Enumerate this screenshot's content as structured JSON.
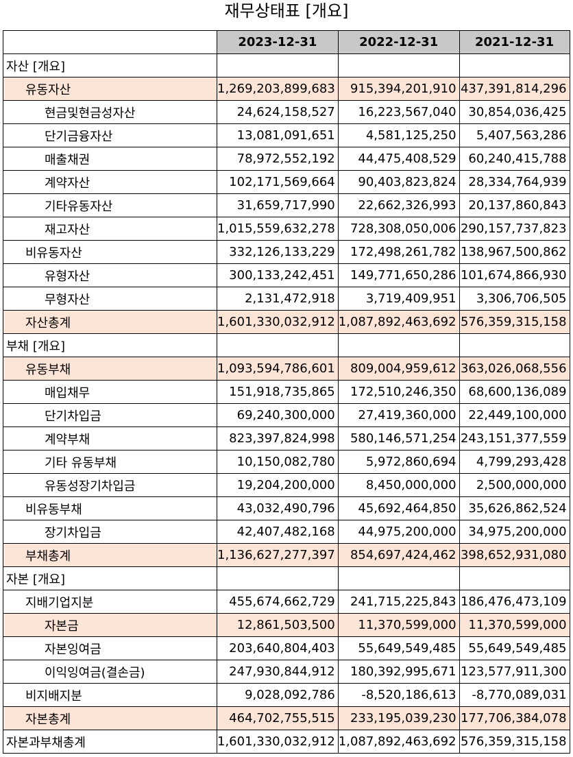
{
  "title": "재무상태표 [개요]",
  "columns": [
    "2023-12-31",
    "2022-12-31",
    "2021-12-31"
  ],
  "rows": [
    {
      "label": "자산 [개요]",
      "level": 0,
      "highlight": false,
      "values": [
        "",
        "",
        ""
      ]
    },
    {
      "label": "유동자산",
      "level": 1,
      "highlight": true,
      "values": [
        "1,269,203,899,683",
        "915,394,201,910",
        "437,391,814,296"
      ]
    },
    {
      "label": "현금및현금성자산",
      "level": 2,
      "highlight": false,
      "values": [
        "24,624,158,527",
        "16,223,567,040",
        "30,854,036,425"
      ]
    },
    {
      "label": "단기금융자산",
      "level": 2,
      "highlight": false,
      "values": [
        "13,081,091,651",
        "4,581,125,250",
        "5,407,563,286"
      ]
    },
    {
      "label": "매출채권",
      "level": 2,
      "highlight": false,
      "values": [
        "78,972,552,192",
        "44,475,408,529",
        "60,240,415,788"
      ]
    },
    {
      "label": "계약자산",
      "level": 2,
      "highlight": false,
      "values": [
        "102,171,569,664",
        "90,403,823,824",
        "28,334,764,939"
      ]
    },
    {
      "label": "기타유동자산",
      "level": 2,
      "highlight": false,
      "values": [
        "31,659,717,990",
        "22,662,326,993",
        "20,137,860,843"
      ]
    },
    {
      "label": "재고자산",
      "level": 2,
      "highlight": false,
      "values": [
        "1,015,559,632,278",
        "728,308,050,006",
        "290,157,737,823"
      ]
    },
    {
      "label": "비유동자산",
      "level": 1,
      "highlight": false,
      "values": [
        "332,126,133,229",
        "172,498,261,782",
        "138,967,500,862"
      ]
    },
    {
      "label": "유형자산",
      "level": 2,
      "highlight": false,
      "values": [
        "300,133,242,451",
        "149,771,650,286",
        "101,674,866,930"
      ]
    },
    {
      "label": "무형자산",
      "level": 2,
      "highlight": false,
      "values": [
        "2,131,472,918",
        "3,719,409,951",
        "3,306,706,505"
      ]
    },
    {
      "label": "자산총계",
      "level": 1,
      "highlight": true,
      "values": [
        "1,601,330,032,912",
        "1,087,892,463,692",
        "576,359,315,158"
      ]
    },
    {
      "label": "부채 [개요]",
      "level": 0,
      "highlight": false,
      "values": [
        "",
        "",
        ""
      ]
    },
    {
      "label": "유동부채",
      "level": 1,
      "highlight": true,
      "values": [
        "1,093,594,786,601",
        "809,004,959,612",
        "363,026,068,556"
      ]
    },
    {
      "label": "매입채무",
      "level": 2,
      "highlight": false,
      "values": [
        "151,918,735,865",
        "172,510,246,350",
        "68,600,136,089"
      ]
    },
    {
      "label": "단기차입금",
      "level": 2,
      "highlight": false,
      "values": [
        "69,240,300,000",
        "27,419,360,000",
        "22,449,100,000"
      ]
    },
    {
      "label": "계약부채",
      "level": 2,
      "highlight": false,
      "values": [
        "823,397,824,998",
        "580,146,571,254",
        "243,151,377,559"
      ]
    },
    {
      "label": "기타 유동부채",
      "level": 2,
      "highlight": false,
      "values": [
        "10,150,082,780",
        "5,972,860,694",
        "4,799,293,428"
      ]
    },
    {
      "label": "유동성장기차입금",
      "level": 2,
      "highlight": false,
      "values": [
        "19,204,200,000",
        "8,450,000,000",
        "2,500,000,000"
      ]
    },
    {
      "label": "비유동부채",
      "level": 1,
      "highlight": false,
      "values": [
        "43,032,490,796",
        "45,692,464,850",
        "35,626,862,524"
      ]
    },
    {
      "label": "장기차입금",
      "level": 2,
      "highlight": false,
      "values": [
        "42,407,482,168",
        "44,975,200,000",
        "34,975,200,000"
      ]
    },
    {
      "label": "부채총계",
      "level": 1,
      "highlight": true,
      "values": [
        "1,136,627,277,397",
        "854,697,424,462",
        "398,652,931,080"
      ]
    },
    {
      "label": "자본 [개요]",
      "level": 0,
      "highlight": false,
      "values": [
        "",
        "",
        ""
      ]
    },
    {
      "label": "지배기업지분",
      "level": 1,
      "highlight": false,
      "values": [
        "455,674,662,729",
        "241,715,225,843",
        "186,476,473,109"
      ]
    },
    {
      "label": "자본금",
      "level": 2,
      "highlight": true,
      "values": [
        "12,861,503,500",
        "11,370,599,000",
        "11,370,599,000"
      ]
    },
    {
      "label": "자본잉여금",
      "level": 2,
      "highlight": false,
      "values": [
        "203,640,804,403",
        "55,649,549,485",
        "55,649,549,485"
      ]
    },
    {
      "label": "이익잉여금(결손금)",
      "level": 2,
      "highlight": false,
      "values": [
        "247,930,844,912",
        "180,392,995,671",
        "123,577,911,300"
      ]
    },
    {
      "label": "비지배지분",
      "level": 1,
      "highlight": false,
      "values": [
        "9,028,092,786",
        "-8,520,186,613",
        "-8,770,089,031"
      ]
    },
    {
      "label": "자본총계",
      "level": 1,
      "highlight": true,
      "values": [
        "464,702,755,515",
        "233,195,039,230",
        "177,706,384,078"
      ]
    },
    {
      "label": "자본과부채총계",
      "level": 0,
      "highlight": false,
      "values": [
        "1,601,330,032,912",
        "1,087,892,463,692",
        "576,359,315,158"
      ]
    }
  ]
}
